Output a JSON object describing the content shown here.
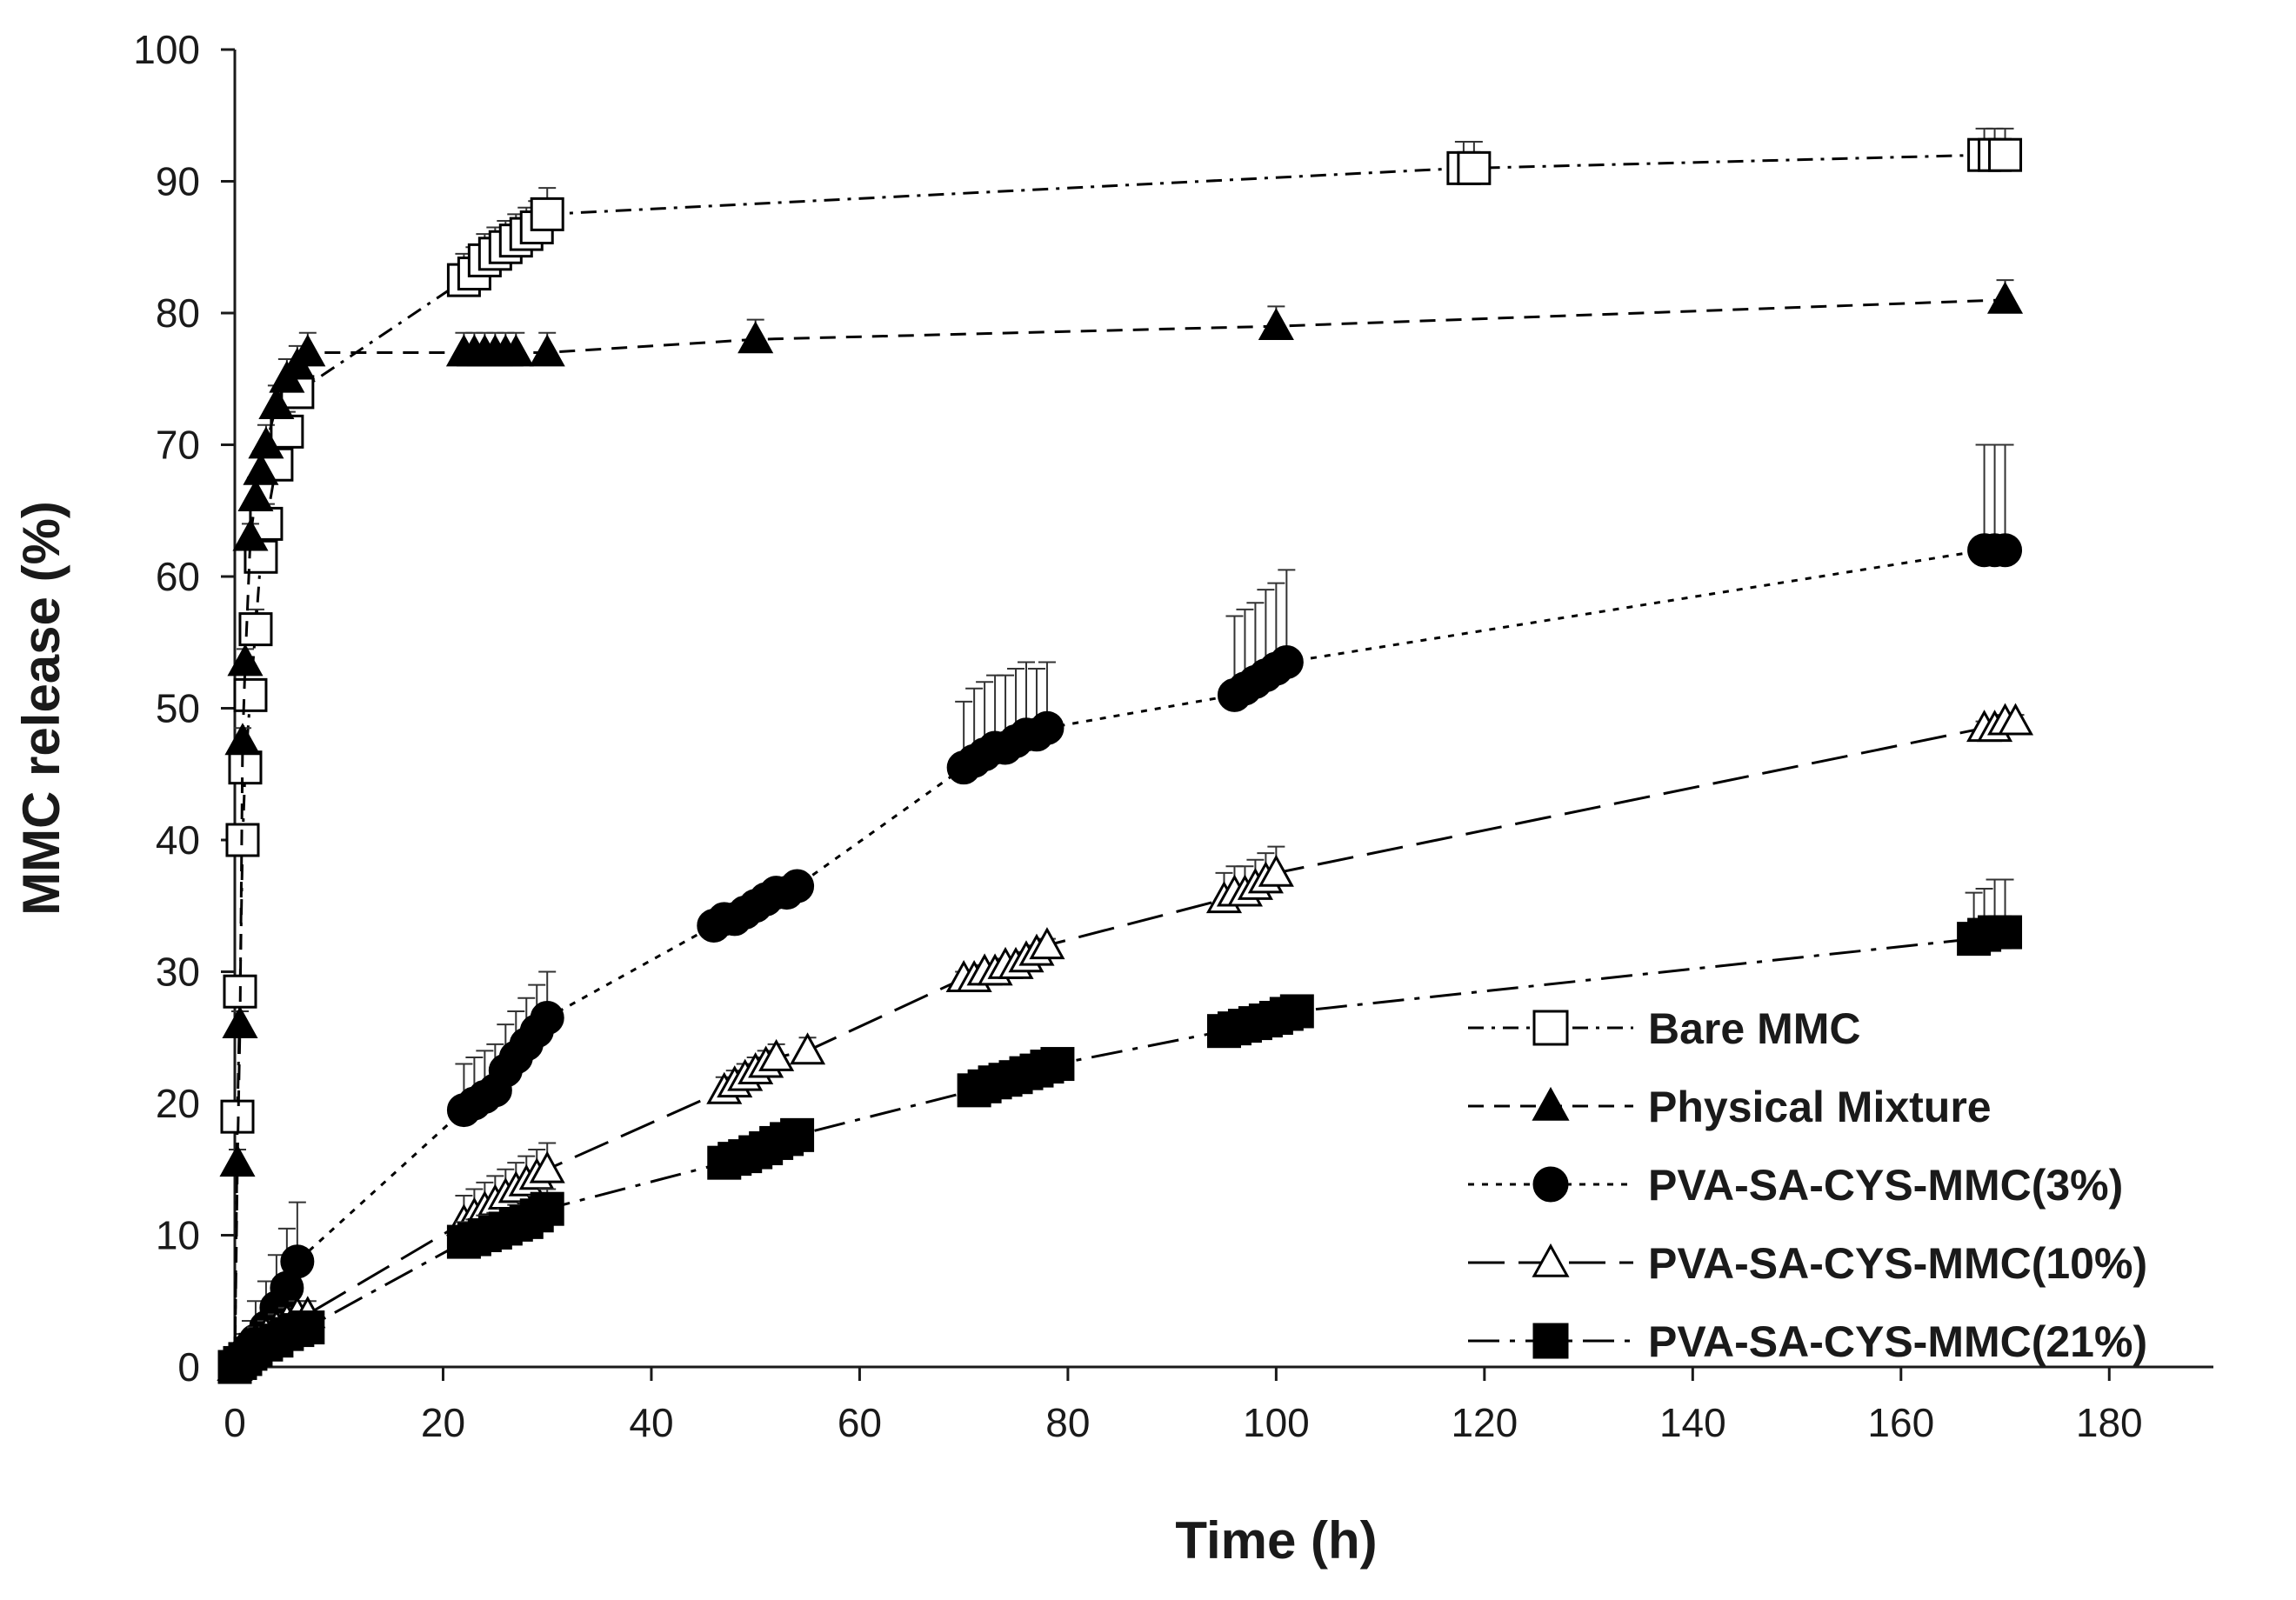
{
  "chart_data": {
    "type": "line",
    "title": "",
    "xlabel": "Time (h)",
    "ylabel": "MMC release (%)",
    "xlim": [
      0,
      190
    ],
    "ylim": [
      0,
      100
    ],
    "xticks": [
      0,
      20,
      40,
      60,
      80,
      100,
      120,
      140,
      160,
      180
    ],
    "yticks": [
      0,
      10,
      20,
      30,
      40,
      50,
      60,
      70,
      80,
      90,
      100
    ],
    "grid": false,
    "legend_position": "bottom-right",
    "series": [
      {
        "name": "Bare MMC",
        "marker": "square-open",
        "dash": "dash-dot",
        "x": [
          0,
          0.25,
          0.5,
          0.75,
          1,
          1.5,
          2,
          2.5,
          3,
          4,
          5,
          6,
          22,
          23,
          24,
          25,
          26,
          27,
          28,
          29,
          30,
          118,
          119,
          168,
          169,
          170
        ],
        "y": [
          0,
          19,
          28.5,
          40,
          45.5,
          51,
          56,
          61.5,
          64,
          68.5,
          71,
          74,
          82.5,
          83,
          84,
          84.5,
          85,
          85.5,
          86,
          86.5,
          87.5,
          91,
          91,
          92,
          92,
          92
        ],
        "err": [
          0,
          1,
          1,
          1,
          1,
          1,
          1.5,
          1.5,
          1.5,
          1.5,
          1.5,
          1.5,
          2,
          2,
          2,
          2,
          2,
          2,
          2,
          2,
          2,
          2,
          2,
          2,
          2,
          2
        ]
      },
      {
        "name": "Physical Mixture",
        "marker": "triangle-filled",
        "dash": "dash",
        "x": [
          0,
          0.25,
          0.5,
          0.75,
          1,
          1.5,
          2,
          2.5,
          3,
          4,
          5,
          6,
          7,
          22,
          23,
          24,
          25,
          26,
          27,
          30,
          50,
          100,
          170
        ],
        "y": [
          0,
          15.5,
          26,
          47.5,
          53.5,
          63,
          66,
          68,
          70,
          73,
          75,
          76,
          77,
          77,
          77,
          77,
          77,
          77,
          77,
          77,
          78,
          79,
          81
        ],
        "err": [
          0,
          1,
          1,
          1,
          1,
          1,
          1.5,
          1.5,
          1.5,
          1.5,
          1.5,
          1.5,
          1.5,
          1.5,
          1.5,
          1.5,
          1.5,
          1.5,
          1.5,
          1.5,
          1.5,
          1.5,
          1.5
        ]
      },
      {
        "name": "PVA-SA-CYS-MMC(3%)",
        "marker": "circle-filled",
        "dash": "dot",
        "x": [
          0,
          0.5,
          1,
          1.5,
          2,
          3,
          4,
          5,
          6,
          22,
          23,
          24,
          25,
          26,
          27,
          28,
          29,
          30,
          46,
          47,
          48,
          49,
          50,
          51,
          52,
          53,
          54,
          70,
          71,
          72,
          73,
          74,
          75,
          76,
          77,
          78,
          96,
          97,
          98,
          99,
          100,
          101,
          168,
          169,
          170
        ],
        "y": [
          0,
          0.5,
          1,
          1.5,
          2,
          3,
          4.5,
          6,
          8,
          19.5,
          20,
          20.5,
          21,
          22.5,
          23.5,
          24.5,
          25.5,
          26.5,
          33.5,
          34,
          34,
          34.5,
          35,
          35.5,
          36,
          36,
          36.5,
          45.5,
          46,
          46.5,
          47,
          47,
          47.5,
          48,
          48,
          48.5,
          51,
          51.5,
          52,
          52.5,
          53,
          53.5,
          62,
          62,
          62
        ],
        "err": [
          0,
          1,
          1.5,
          2,
          3,
          3.5,
          4,
          4.5,
          4.5,
          3.5,
          3.5,
          3.5,
          3.5,
          3.5,
          3.5,
          3.5,
          3.5,
          3.5,
          1,
          1,
          1,
          1,
          1,
          1,
          1,
          1,
          1,
          5,
          5.5,
          5.5,
          5.5,
          5.5,
          5.5,
          5.5,
          5,
          5,
          6,
          6,
          6,
          6.5,
          6.5,
          7,
          8,
          8,
          8
        ]
      },
      {
        "name": "PVA-SA-CYS-MMC(10%)",
        "marker": "triangle-open",
        "dash": "long-dash",
        "x": [
          0,
          0.5,
          1,
          1.5,
          2,
          3,
          4,
          5,
          6,
          7,
          22,
          23,
          24,
          25,
          26,
          27,
          28,
          29,
          30,
          47,
          48,
          49,
          50,
          51,
          52,
          55,
          70,
          71,
          72,
          73,
          74,
          75,
          76,
          77,
          78,
          95,
          96,
          97,
          98,
          99,
          100,
          168,
          169,
          170,
          171
        ],
        "y": [
          0,
          0.5,
          1,
          1.5,
          2,
          2.5,
          3,
          3.5,
          4,
          4,
          11,
          11.5,
          12,
          12.5,
          13,
          13.5,
          14,
          14.5,
          15,
          21,
          21.5,
          22,
          22.5,
          23,
          23.5,
          24,
          29.5,
          29.5,
          30,
          30,
          30.5,
          30.5,
          31,
          31.5,
          32,
          35.5,
          36,
          36,
          36.5,
          37,
          37.5,
          48.5,
          48.5,
          49,
          49
        ],
        "err": [
          0,
          0.5,
          0.5,
          0.5,
          1,
          1,
          1,
          1,
          1,
          1,
          2,
          2,
          2,
          2,
          2,
          2,
          2,
          2,
          2,
          1,
          1,
          1,
          1,
          1,
          1,
          1,
          0.5,
          0.5,
          0.5,
          0.5,
          0.5,
          0.5,
          0.5,
          0.5,
          0.5,
          2,
          2,
          2,
          2,
          2,
          2,
          0.5,
          0.5,
          0.5,
          0.5
        ]
      },
      {
        "name": "PVA-SA-CYS-MMC(21%)",
        "marker": "square-filled",
        "dash": "long-dash-dot",
        "x": [
          0,
          0.5,
          1,
          1.5,
          2,
          3,
          4,
          5,
          6,
          7,
          22,
          23,
          24,
          25,
          26,
          27,
          28,
          29,
          30,
          47,
          48,
          49,
          50,
          51,
          52,
          53,
          54,
          71,
          72,
          73,
          74,
          75,
          76,
          77,
          78,
          79,
          95,
          96,
          97,
          98,
          99,
          100,
          101,
          102,
          167,
          168,
          169,
          170
        ],
        "y": [
          0,
          0.3,
          0.6,
          1,
          1.3,
          1.7,
          2,
          2.5,
          2.8,
          3,
          9.5,
          9.7,
          10,
          10.2,
          10.5,
          10.8,
          11,
          11.5,
          12,
          15.5,
          15.8,
          16,
          16.3,
          16.6,
          17,
          17.3,
          17.6,
          21,
          21.3,
          21.6,
          21.8,
          22,
          22.3,
          22.5,
          22.8,
          23,
          25.5,
          25.7,
          25.9,
          26.1,
          26.3,
          26.5,
          26.8,
          27,
          32.5,
          32.8,
          33,
          33
        ],
        "err": [
          0,
          0.3,
          0.3,
          0.3,
          0.5,
          0.5,
          0.5,
          0.5,
          0.5,
          0.5,
          1.5,
          1.5,
          1.5,
          1.5,
          1.5,
          1.5,
          1.5,
          1.5,
          1.5,
          0.5,
          0.5,
          0.5,
          0.5,
          0.5,
          0.5,
          0.5,
          0.5,
          0.5,
          0.5,
          0.5,
          0.5,
          0.5,
          0.5,
          0.5,
          0.5,
          0.5,
          0.5,
          0.5,
          0.5,
          0.5,
          0.5,
          0.5,
          0.5,
          0.5,
          3.5,
          3.5,
          4,
          4
        ]
      }
    ]
  }
}
